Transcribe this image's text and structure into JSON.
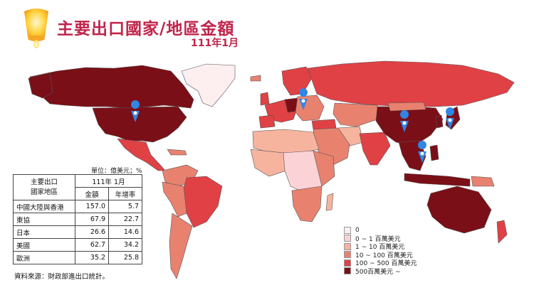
{
  "title": "主要出口國家/地區金額",
  "subtitle": "111年1月",
  "colors": {
    "title": "#c0244a",
    "ocean": "#ffffff",
    "level0": "#fdeef0",
    "level1": "#fbd3d7",
    "level2": "#f6b49e",
    "level3": "#e8826f",
    "level4": "#e04145",
    "level5": "#7b0f17",
    "pin": "#2f86e4"
  },
  "legend": [
    {
      "label": "0",
      "color": "#fdeef0"
    },
    {
      "label": "0 ~ 1 百萬美元",
      "color": "#fbd3d7"
    },
    {
      "label": "1 ~ 10 百萬美元",
      "color": "#f6b49e"
    },
    {
      "label": "10 ~ 100 百萬美元",
      "color": "#e8826f"
    },
    {
      "label": "100 ~ 500 百萬美元",
      "color": "#e04145"
    },
    {
      "label": "500百萬美元 ~",
      "color": "#7b0f17"
    }
  ],
  "table": {
    "unit_note": "單位：億美元；%",
    "header_col": "主要出口\n國家地區",
    "header_period": "111年 1月",
    "header_amount": "金額",
    "header_growth": "年增率",
    "rows": [
      {
        "region": "中國大陸與香港",
        "amount": "157.0",
        "growth": "5.7"
      },
      {
        "region": "東協",
        "amount": "67.9",
        "growth": "22.7"
      },
      {
        "region": "日本",
        "amount": "26.6",
        "growth": "14.6"
      },
      {
        "region": "美國",
        "amount": "62.7",
        "growth": "34.2"
      },
      {
        "region": "歐洲",
        "amount": "35.2",
        "growth": "25.8"
      }
    ]
  },
  "source": "資料來源：財政部進出口統計。",
  "pins": [
    "usa-pin",
    "europe-pin",
    "china-pin",
    "japan-pin",
    "asean-pin"
  ]
}
